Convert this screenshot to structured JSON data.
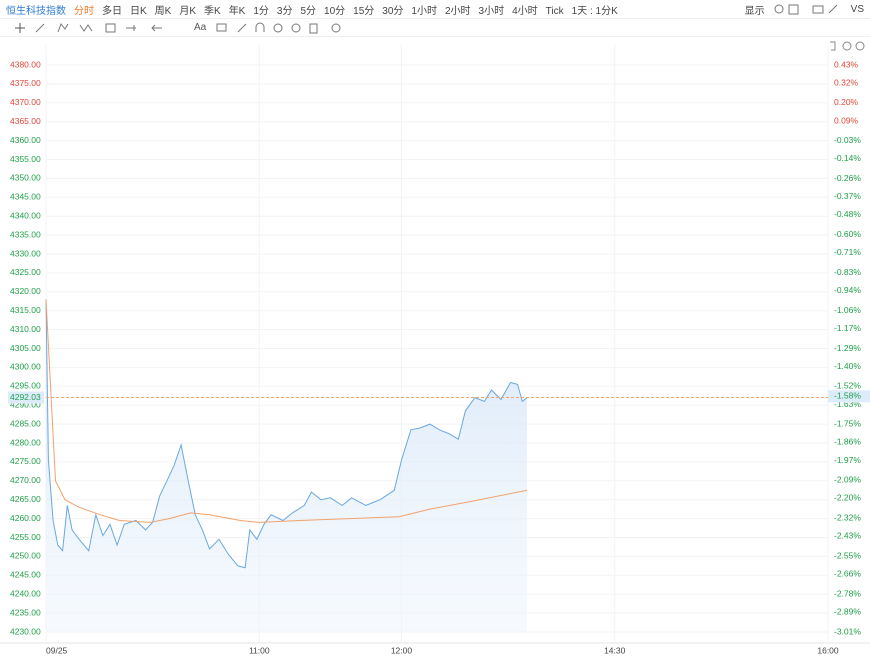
{
  "toolbar": {
    "title": "恒生科技指数",
    "periods": [
      "分时",
      "多日",
      "日K",
      "周K",
      "月K",
      "季K",
      "年K",
      "1分",
      "3分",
      "5分",
      "10分",
      "15分",
      "30分",
      "1小时",
      "2小时",
      "3小时",
      "4小时",
      "Tick",
      "1天 : 1分K"
    ],
    "display": "显示",
    "vs": "VS",
    "text_tool": "Aa"
  },
  "chart_data": {
    "type": "line",
    "series": [
      {
        "color": "#6aa8e0",
        "x": [
          0,
          1,
          3,
          5,
          7,
          9,
          11,
          14,
          18,
          21,
          24,
          27,
          30,
          33,
          38,
          42,
          45,
          48,
          51,
          54,
          57,
          60,
          63,
          66,
          69,
          73,
          77,
          81,
          84,
          86,
          89,
          92,
          95,
          100,
          104,
          109,
          112,
          116,
          120,
          125,
          129,
          135,
          141,
          147,
          150,
          154,
          158,
          162,
          166,
          170,
          174,
          177,
          181,
          185,
          188,
          192,
          196,
          199,
          201,
          203
        ],
        "values": [
          4318,
          4275.5,
          4259.5,
          4253,
          4251.5,
          4263.5,
          4257,
          4254.5,
          4251.5,
          4261,
          4255.5,
          4258.5,
          4253,
          4258.5,
          4259.5,
          4257,
          4259,
          4266,
          4270,
          4274,
          4279.5,
          4270,
          4261,
          4257,
          4252,
          4254.5,
          4250.5,
          4247.5,
          4247,
          4257,
          4254.5,
          4258.5,
          4261,
          4259.5,
          4261.5,
          4263.5,
          4267,
          4265,
          4265.5,
          4263.5,
          4265.5,
          4263.5,
          4265,
          4267.5,
          4275.5,
          4283.5,
          4284,
          4285,
          4283.5,
          4282.5,
          4281,
          4288.5,
          4292,
          4291,
          4294,
          4291.5,
          4296,
          4295.5,
          4291,
          4292
        ]
      },
      {
        "color": "#f2a16b",
        "x": [
          0,
          4,
          8,
          14,
          23,
          31,
          44,
          52,
          61,
          69,
          82,
          90,
          107,
          128,
          149,
          162,
          179,
          203
        ],
        "values": [
          4318,
          4270,
          4265,
          4263,
          4261,
          4259.5,
          4259,
          4260,
          4261.5,
          4261,
          4259.5,
          4259,
          4259.5,
          4260,
          4260.5,
          4262.5,
          4264.5,
          4267.5
        ]
      }
    ],
    "xlim": [
      0,
      330
    ],
    "xticks": [
      {
        "value": 0,
        "label": "09/25"
      },
      {
        "value": 90,
        "label": "11:00"
      },
      {
        "value": 150,
        "label": "12:00"
      },
      {
        "value": 240,
        "label": "14:30"
      },
      {
        "value": 330,
        "label": "16:00"
      }
    ],
    "ylim": [
      4230,
      4380
    ],
    "yticks": [
      {
        "value": 4380,
        "label": "4380.00"
      },
      {
        "value": 4375,
        "label": "4375.00"
      },
      {
        "value": 4370,
        "label": "4370.00"
      },
      {
        "value": 4365,
        "label": "4365.00"
      },
      {
        "value": 4360,
        "label": "4360.00"
      },
      {
        "value": 4355,
        "label": "4355.00"
      },
      {
        "value": 4350,
        "label": "4350.00"
      },
      {
        "value": 4345,
        "label": "4345.00"
      },
      {
        "value": 4340,
        "label": "4340.00"
      },
      {
        "value": 4335,
        "label": "4335.00"
      },
      {
        "value": 4330,
        "label": "4330.00"
      },
      {
        "value": 4325,
        "label": "4325.00"
      },
      {
        "value": 4320,
        "label": "4320.00"
      },
      {
        "value": 4315,
        "label": "4315.00"
      },
      {
        "value": 4310,
        "label": "4310.00"
      },
      {
        "value": 4305,
        "label": "4305.00"
      },
      {
        "value": 4300,
        "label": "4300.00"
      },
      {
        "value": 4295,
        "label": "4295.00"
      },
      {
        "value": 4290,
        "label": "4290.00"
      },
      {
        "value": 4285,
        "label": "4285.00"
      },
      {
        "value": 4280,
        "label": "4280.00"
      },
      {
        "value": 4275,
        "label": "4275.00"
      },
      {
        "value": 4270,
        "label": "4270.00"
      },
      {
        "value": 4265,
        "label": "4265.00"
      },
      {
        "value": 4260,
        "label": "4260.00"
      },
      {
        "value": 4255,
        "label": "4255.00"
      },
      {
        "value": 4250,
        "label": "4250.00"
      },
      {
        "value": 4245,
        "label": "4245.00"
      },
      {
        "value": 4240,
        "label": "4240.00"
      },
      {
        "value": 4235,
        "label": "4235.00"
      },
      {
        "value": 4230,
        "label": "4230.00"
      }
    ],
    "y2lim": [
      -3.01,
      0.43
    ],
    "y2ticks": [
      {
        "value": 0.43,
        "label": "0.43%"
      },
      {
        "value": 0.32,
        "label": "0.32%"
      },
      {
        "value": 0.2,
        "label": "0.20%"
      },
      {
        "value": 0.09,
        "label": "0.09%"
      },
      {
        "value": -0.03,
        "label": "-0.03%"
      },
      {
        "value": -0.14,
        "label": "-0.14%"
      },
      {
        "value": -0.26,
        "label": "-0.26%"
      },
      {
        "value": -0.37,
        "label": "-0.37%"
      },
      {
        "value": -0.48,
        "label": "-0.48%"
      },
      {
        "value": -0.6,
        "label": "-0.60%"
      },
      {
        "value": -0.71,
        "label": "-0.71%"
      },
      {
        "value": -0.83,
        "label": "-0.83%"
      },
      {
        "value": -0.94,
        "label": "-0.94%"
      },
      {
        "value": -1.06,
        "label": "-1.06%"
      },
      {
        "value": -1.17,
        "label": "-1.17%"
      },
      {
        "value": -1.29,
        "label": "-1.29%"
      },
      {
        "value": -1.4,
        "label": "-1.40%"
      },
      {
        "value": -1.52,
        "label": "-1.52%"
      },
      {
        "value": -1.63,
        "label": "-1.63%"
      },
      {
        "value": -1.75,
        "label": "-1.75%"
      },
      {
        "value": -1.86,
        "label": "-1.86%"
      },
      {
        "value": -1.97,
        "label": "-1.97%"
      },
      {
        "value": -2.09,
        "label": "-2.09%"
      },
      {
        "value": -2.2,
        "label": "-2.20%"
      },
      {
        "value": -2.32,
        "label": "-2.32%"
      },
      {
        "value": -2.43,
        "label": "-2.43%"
      },
      {
        "value": -2.55,
        "label": "-2.55%"
      },
      {
        "value": -2.66,
        "label": "-2.66%"
      },
      {
        "value": -2.78,
        "label": "-2.78%"
      },
      {
        "value": -2.89,
        "label": "-2.89%"
      },
      {
        "value": -3.01,
        "label": "-3.01%"
      }
    ],
    "up_color": "#e0463a",
    "down_color": "#1f9e4a",
    "last_price": 4292.03,
    "last_change": {
      "value": -1.58,
      "label": "-1.58%"
    },
    "grid": true
  }
}
